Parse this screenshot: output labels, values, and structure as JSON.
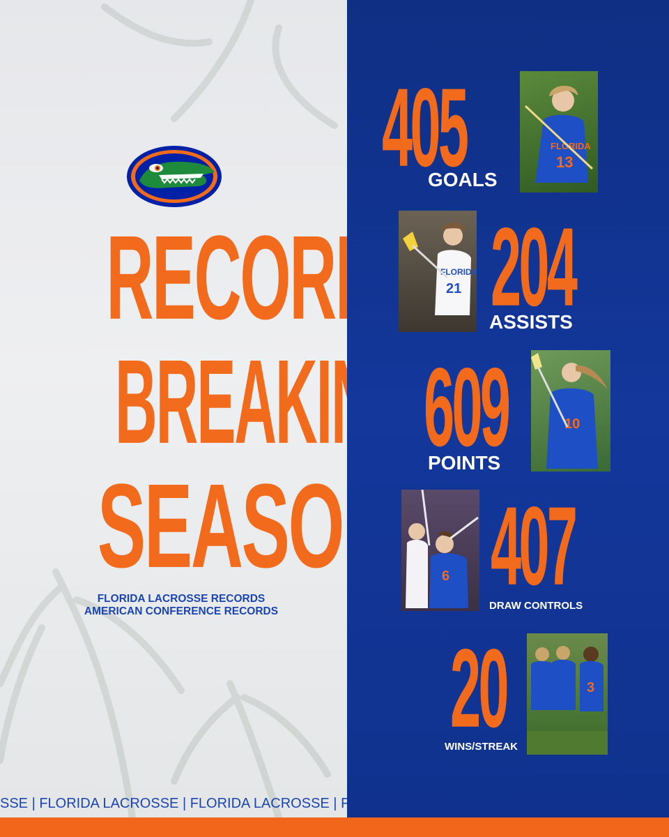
{
  "headline": [
    "RECORD-",
    "BREAKING",
    "SEASON"
  ],
  "records": [
    "FLORIDA LACROSSE RECORDS",
    "AMERICAN CONFERENCE RECORDS"
  ],
  "ticker": "SSE | FLORIDA LACROSSE | FLORIDA LACROSSE | FL",
  "stats": [
    {
      "value": "405",
      "label": "GOALS",
      "jersey": "13"
    },
    {
      "value": "204",
      "label": "ASSISTS",
      "jersey": "21"
    },
    {
      "value": "609",
      "label": "POINTS",
      "jersey": "10"
    },
    {
      "value": "407",
      "label": "DRAW CONTROLS",
      "jersey": "6"
    },
    {
      "value": "20",
      "label": "WINS/STREAK",
      "jersey": "3"
    }
  ],
  "colors": {
    "orange": "#f26a1c",
    "blue": "#13379b",
    "light_blue": "#1a45b3",
    "green": "#2e7d3a"
  },
  "icons": {
    "logo": "gator-head-logo"
  }
}
